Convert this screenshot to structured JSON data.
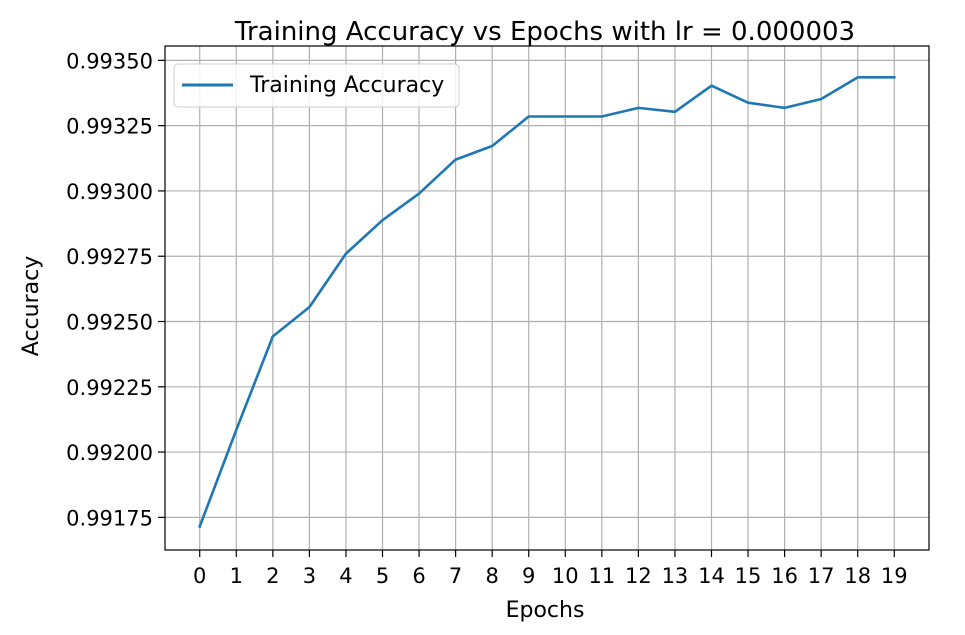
{
  "chart_data": {
    "type": "line",
    "title": "Training Accuracy vs Epochs with lr = 0.000003",
    "xlabel": "Epochs",
    "ylabel": "Accuracy",
    "x": [
      0,
      1,
      2,
      3,
      4,
      5,
      6,
      7,
      8,
      9,
      10,
      11,
      12,
      13,
      14,
      15,
      16,
      17,
      18,
      19
    ],
    "x_ticks": [
      "0",
      "1",
      "2",
      "3",
      "4",
      "5",
      "6",
      "7",
      "8",
      "9",
      "10",
      "11",
      "12",
      "13",
      "14",
      "15",
      "16",
      "17",
      "18",
      "19"
    ],
    "y_ticks": [
      "0.99175",
      "0.99200",
      "0.99225",
      "0.99250",
      "0.99275",
      "0.99300",
      "0.99325",
      "0.99350"
    ],
    "y_tick_values": [
      0.99175,
      0.992,
      0.99225,
      0.9925,
      0.99275,
      0.993,
      0.99325,
      0.9935
    ],
    "xlim": [
      -0.95,
      19.95
    ],
    "ylim": [
      0.991625,
      0.993555
    ],
    "grid": true,
    "legend_position": "upper-left",
    "series": [
      {
        "name": "Training Accuracy",
        "color": "#1f77b4",
        "values": [
          0.991715,
          0.992085,
          0.992443,
          0.992555,
          0.99276,
          0.992888,
          0.99299,
          0.99312,
          0.993172,
          0.993285,
          0.993285,
          0.993285,
          0.993318,
          0.993303,
          0.993403,
          0.993338,
          0.993318,
          0.993352,
          0.993435,
          0.993435
        ]
      }
    ]
  }
}
